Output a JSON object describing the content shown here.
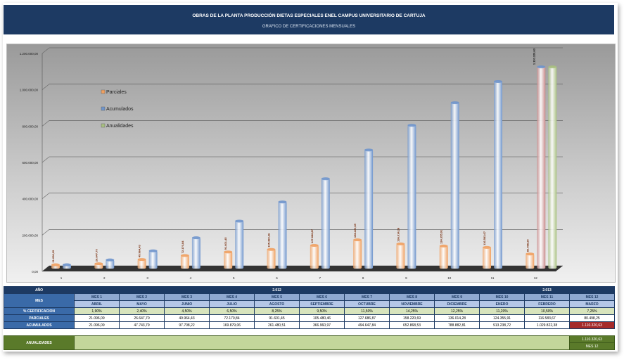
{
  "header": {
    "title": "OBRAS DE LA PLANTA PRODUCCIÓN DIETAS ESPECIALES ENEL CAMPUS UNIVERSITARIO DE CARTUJA",
    "subtitle": "GRAFICO DE CERTIFICACIONES MENSUALES"
  },
  "chart_data": {
    "type": "bar",
    "categories": [
      "1",
      "2",
      "3",
      "4",
      "5",
      "6",
      "7",
      "8",
      "9",
      "10",
      "11",
      "12"
    ],
    "ylim": [
      0,
      1200000
    ],
    "yticks": [
      "0,00",
      "200.000,00",
      "400.000,00",
      "600.000,00",
      "800.000,00",
      "1.000.000,00",
      "1.200.000,00"
    ],
    "grid": true,
    "legend_position": "top-left",
    "series": [
      {
        "name": "Parciales",
        "color": "#f0a060",
        "values": [
          21096.09,
          26647.7,
          49964.43,
          72170.84,
          91601.45,
          105480.46,
          127686.87,
          158220.69,
          136014.28,
          124355.91,
          116583.67,
          80498.25
        ],
        "labels": [
          "21.096,09",
          "26.647,70",
          "49.964,43",
          "72.170,84",
          "91.601,45",
          "105.480,46",
          "127.686,87",
          "158.220,69",
          "136.014,28",
          "124.355,91",
          "116.583,67",
          "80.498,25"
        ]
      },
      {
        "name": "Acumulados",
        "color": "#6f95cc",
        "values": [
          21096.09,
          47743.79,
          97708.22,
          169879.06,
          261480.51,
          366960.97,
          494647.84,
          652868.53,
          788882.81,
          913238.72,
          1029822.38,
          1110320.63
        ],
        "labels": [
          "",
          "",
          "",
          "",
          "",
          "",
          "",
          "",
          "",
          "",
          "",
          "1.110.320,63"
        ]
      },
      {
        "name": "Anualidades",
        "color": "#a8c080",
        "values": [
          0,
          0,
          0,
          0,
          0,
          0,
          0,
          0,
          0,
          0,
          0,
          1110320.63
        ]
      }
    ],
    "highlight_color": "#c98a8a"
  },
  "table": {
    "year_label": "AÑO",
    "years": [
      {
        "label": "2.012",
        "span": 9
      },
      {
        "label": "2.013",
        "span": 3
      }
    ],
    "mes_label": "MES",
    "mes": [
      "MES 1",
      "MES 2",
      "MES 3",
      "MES 4",
      "MES 5",
      "MES 6",
      "MES 7",
      "MES 8",
      "MES 9",
      "MES 10",
      "MES 11",
      "MES 12"
    ],
    "months": [
      "ABRIL",
      "MAYO",
      "JUNIO",
      "JULIO",
      "AGOSTO",
      "SEPTIEMBRE",
      "OCTUBRE",
      "NOVIEMBRE",
      "DICIEMBRE",
      "ENERO",
      "FEBRERO",
      "MARZO"
    ],
    "pct_label": "% CERTIFICACION",
    "pct": [
      "1,90%",
      "2,40%",
      "4,50%",
      "6,50%",
      "8,25%",
      "9,50%",
      "11,50%",
      "14,25%",
      "12,25%",
      "11,20%",
      "10,50%",
      "7,25%"
    ],
    "parc_label": "PARCIALES",
    "parciales": [
      "21.096,09",
      "26.647,70",
      "49.964,43",
      "72.170,84",
      "91.601,45",
      "105.480,46",
      "127.686,87",
      "158.220,69",
      "136.014,28",
      "124.355,91",
      "116.583,67",
      "80.498,25"
    ],
    "acum_label": "ACUMULADOS",
    "acumulados": [
      "21.096,09",
      "47.743,79",
      "97.708,22",
      "169.879,06",
      "261.480,51",
      "366.960,97",
      "494.647,84",
      "652.868,53",
      "788.882,81",
      "913.238,72",
      "1.029.822,38",
      "1.110.320,63"
    ],
    "anual_label": "ANUALIDADES",
    "anual_value": "1.110.320,63",
    "anual_mes": "MES 12"
  }
}
